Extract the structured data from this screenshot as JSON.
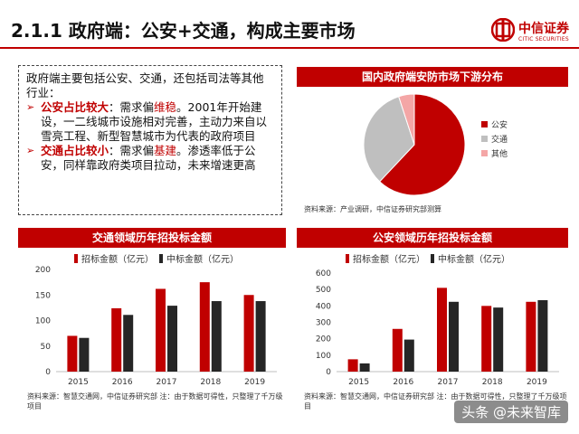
{
  "title": "2.1.1 政府端：公安+交通，构成主要市场",
  "logo": {
    "name": "中信证券",
    "en": "CITIC SECURITIES"
  },
  "intro": {
    "lead": "政府端主要包括公安、交通，还包括司法等其他行业：",
    "bullets": [
      {
        "head": "公安占比较大",
        "mid": "：需求偏",
        "key": "维稳",
        "tail": "。2001年开始建设，一二线城市设施相对完善，主动力来自以雪亮工程、新型智慧城市为代表的政府项目"
      },
      {
        "head": "交通占比较小",
        "mid": "：需求偏",
        "key": "基建",
        "tail": "。渗透率低于公安，同样靠政府类项目拉动，未来增速更高"
      }
    ]
  },
  "colors": {
    "accent": "#c00000",
    "dark": "#262626",
    "gray": "#bfbfbf",
    "pink": "#f4a6a6"
  },
  "pie": {
    "banner": "国内政府端安防市场下游分布",
    "source": "资料来源：产业调研，中信证券研究部测算"
  },
  "bar1": {
    "banner": "交通领域历年招投标金额",
    "source": "资料来源：智慧交通网，中信证券研究部 注：由于数据可得性，只整理了千万级项目"
  },
  "bar2": {
    "banner": "公安领域历年招投标金额",
    "source": "资料来源：智慧交通网，中信证券研究部 注：由于数据可得性，只整理了千万级项目"
  },
  "watermark": "头条 @未来智库",
  "chart_data": [
    {
      "type": "pie",
      "series": [
        {
          "name": "公安",
          "value": 62,
          "color": "#c00000"
        },
        {
          "name": "交通",
          "value": 33,
          "color": "#bfbfbf"
        },
        {
          "name": "其他",
          "value": 5,
          "color": "#f4a6a6"
        }
      ],
      "legend": "right"
    },
    {
      "type": "bar",
      "categories": [
        "2015",
        "2016",
        "2017",
        "2018",
        "2019"
      ],
      "series": [
        {
          "name": "招标金额（亿元）",
          "values": [
            70,
            124,
            162,
            175,
            150
          ],
          "color": "#c00000"
        },
        {
          "name": "中标金额（亿元）",
          "values": [
            66,
            111,
            129,
            138,
            138
          ],
          "color": "#262626"
        }
      ],
      "ylim": [
        0,
        200
      ],
      "yticks": [
        0,
        50,
        100,
        150,
        200
      ],
      "legend": "top"
    },
    {
      "type": "bar",
      "categories": [
        "2015",
        "2016",
        "2017",
        "2018",
        "2019"
      ],
      "series": [
        {
          "name": "招标金额（亿元）",
          "values": [
            75,
            260,
            510,
            400,
            425
          ],
          "color": "#c00000"
        },
        {
          "name": "中标金额（亿元）",
          "values": [
            50,
            195,
            425,
            390,
            435
          ],
          "color": "#262626"
        }
      ],
      "ylim": [
        0,
        600
      ],
      "yticks": [
        0,
        100,
        200,
        300,
        400,
        500,
        600
      ],
      "legend": "top"
    }
  ]
}
